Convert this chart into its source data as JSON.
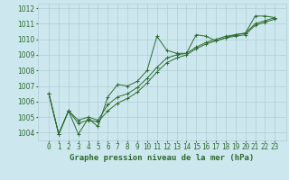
{
  "xlabel": "Graphe pression niveau de la mer (hPa)",
  "background_color": "#cce8ee",
  "line_color": "#2d6a2d",
  "grid_color": "#b0cdd4",
  "series": {
    "line1": [
      1006.5,
      1003.9,
      1005.4,
      1003.9,
      1004.9,
      1004.4,
      1006.3,
      1007.1,
      1007.0,
      1007.3,
      1008.0,
      1010.2,
      1009.3,
      1009.1,
      1009.1,
      1010.3,
      1010.2,
      1009.9,
      1010.1,
      1010.3,
      1010.4,
      1011.5,
      1011.5,
      1011.4
    ],
    "line2": [
      1006.5,
      1003.9,
      1005.4,
      1004.8,
      1005.0,
      1004.8,
      1005.8,
      1006.3,
      1006.5,
      1006.9,
      1007.5,
      1008.2,
      1008.8,
      1009.0,
      1009.1,
      1009.5,
      1009.8,
      1010.0,
      1010.2,
      1010.3,
      1010.4,
      1011.0,
      1011.2,
      1011.4
    ],
    "line3": [
      1006.5,
      1003.9,
      1005.4,
      1004.6,
      1004.8,
      1004.7,
      1005.4,
      1005.9,
      1006.2,
      1006.6,
      1007.2,
      1007.9,
      1008.5,
      1008.8,
      1009.0,
      1009.4,
      1009.7,
      1009.9,
      1010.1,
      1010.2,
      1010.3,
      1010.9,
      1011.1,
      1011.3
    ]
  },
  "x_values": [
    0,
    1,
    2,
    3,
    4,
    5,
    6,
    7,
    8,
    9,
    10,
    11,
    12,
    13,
    14,
    15,
    16,
    17,
    18,
    19,
    20,
    21,
    22,
    23
  ],
  "ylim": [
    1003.5,
    1012.3
  ],
  "yticks": [
    1004,
    1005,
    1006,
    1007,
    1008,
    1009,
    1010,
    1011,
    1012
  ],
  "tick_fontsize": 5.5,
  "xlabel_fontsize": 6.5
}
